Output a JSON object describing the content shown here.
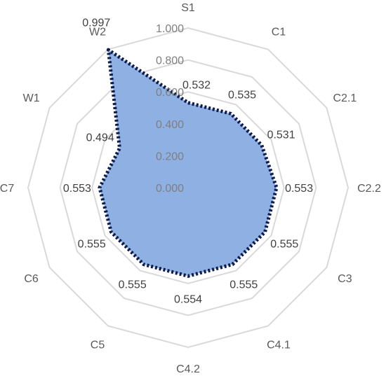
{
  "chart_data": {
    "type": "radar",
    "categories": [
      "S1",
      "C1",
      "C2.1",
      "C2.2",
      "C3",
      "C4.1",
      "C4.2",
      "C5",
      "C6",
      "C7",
      "W1",
      "W2"
    ],
    "series": [
      {
        "values": [
          0.532,
          0.535,
          0.531,
          0.553,
          0.555,
          0.555,
          0.554,
          0.555,
          0.555,
          0.553,
          0.494,
          0.997
        ],
        "data_labels": [
          "0.532",
          "0.535",
          "0.531",
          "0.553",
          "0.555",
          "0.555",
          "0.554",
          "0.555",
          "0.555",
          "0.553",
          "0.494",
          "0.997"
        ]
      }
    ],
    "rlim": [
      0,
      1
    ],
    "ticks": [
      0,
      0.2,
      0.4,
      0.6,
      0.8,
      1.0
    ],
    "tick_labels": [
      "0.000",
      "0.200",
      "0.400",
      "0.600",
      "0.800",
      "1.000"
    ],
    "grid": true,
    "legend": "none",
    "colors": {
      "fill": "#8eb0e3",
      "line": "#0d1b4d",
      "grid": "#d9d9d9"
    }
  }
}
